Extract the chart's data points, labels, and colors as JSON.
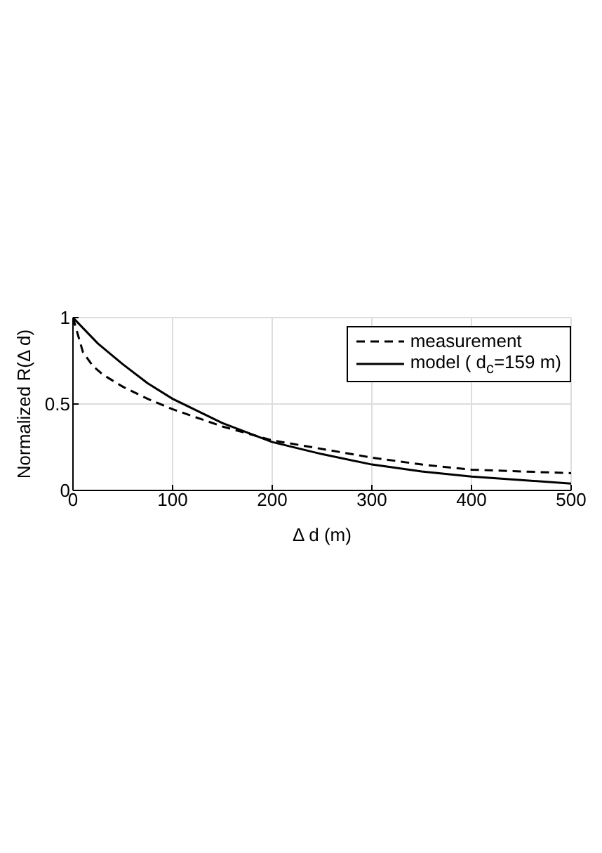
{
  "chart_data": {
    "type": "line",
    "xlabel": "Δ d (m)",
    "ylabel": "Normalized R(Δ d)",
    "xlim": [
      0,
      500
    ],
    "xticks": [
      0,
      100,
      200,
      300,
      400,
      500
    ],
    "ylim": [
      0,
      1
    ],
    "yticks": [
      0,
      0.5,
      1
    ],
    "grid": true,
    "legend": "top right",
    "series": [
      {
        "name": "measurement",
        "color": "#000000",
        "line_style": "dashed",
        "x": [
          0,
          5,
          10,
          20,
          30,
          50,
          75,
          100,
          150,
          200,
          250,
          300,
          350,
          400,
          450,
          500
        ],
        "values": [
          1,
          0.9,
          0.8,
          0.72,
          0.67,
          0.6,
          0.53,
          0.47,
          0.37,
          0.29,
          0.24,
          0.19,
          0.15,
          0.12,
          0.11,
          0.1
        ]
      },
      {
        "name": "model ( d$_{c}$=159 m)",
        "color": "#000000",
        "line_style": "solid",
        "x": [
          0,
          25,
          50,
          75,
          100,
          150,
          200,
          250,
          300,
          350,
          400,
          450,
          500
        ],
        "values": [
          1,
          0.85,
          0.73,
          0.62,
          0.53,
          0.39,
          0.28,
          0.21,
          0.15,
          0.11,
          0.08,
          0.06,
          0.04
        ]
      }
    ]
  }
}
